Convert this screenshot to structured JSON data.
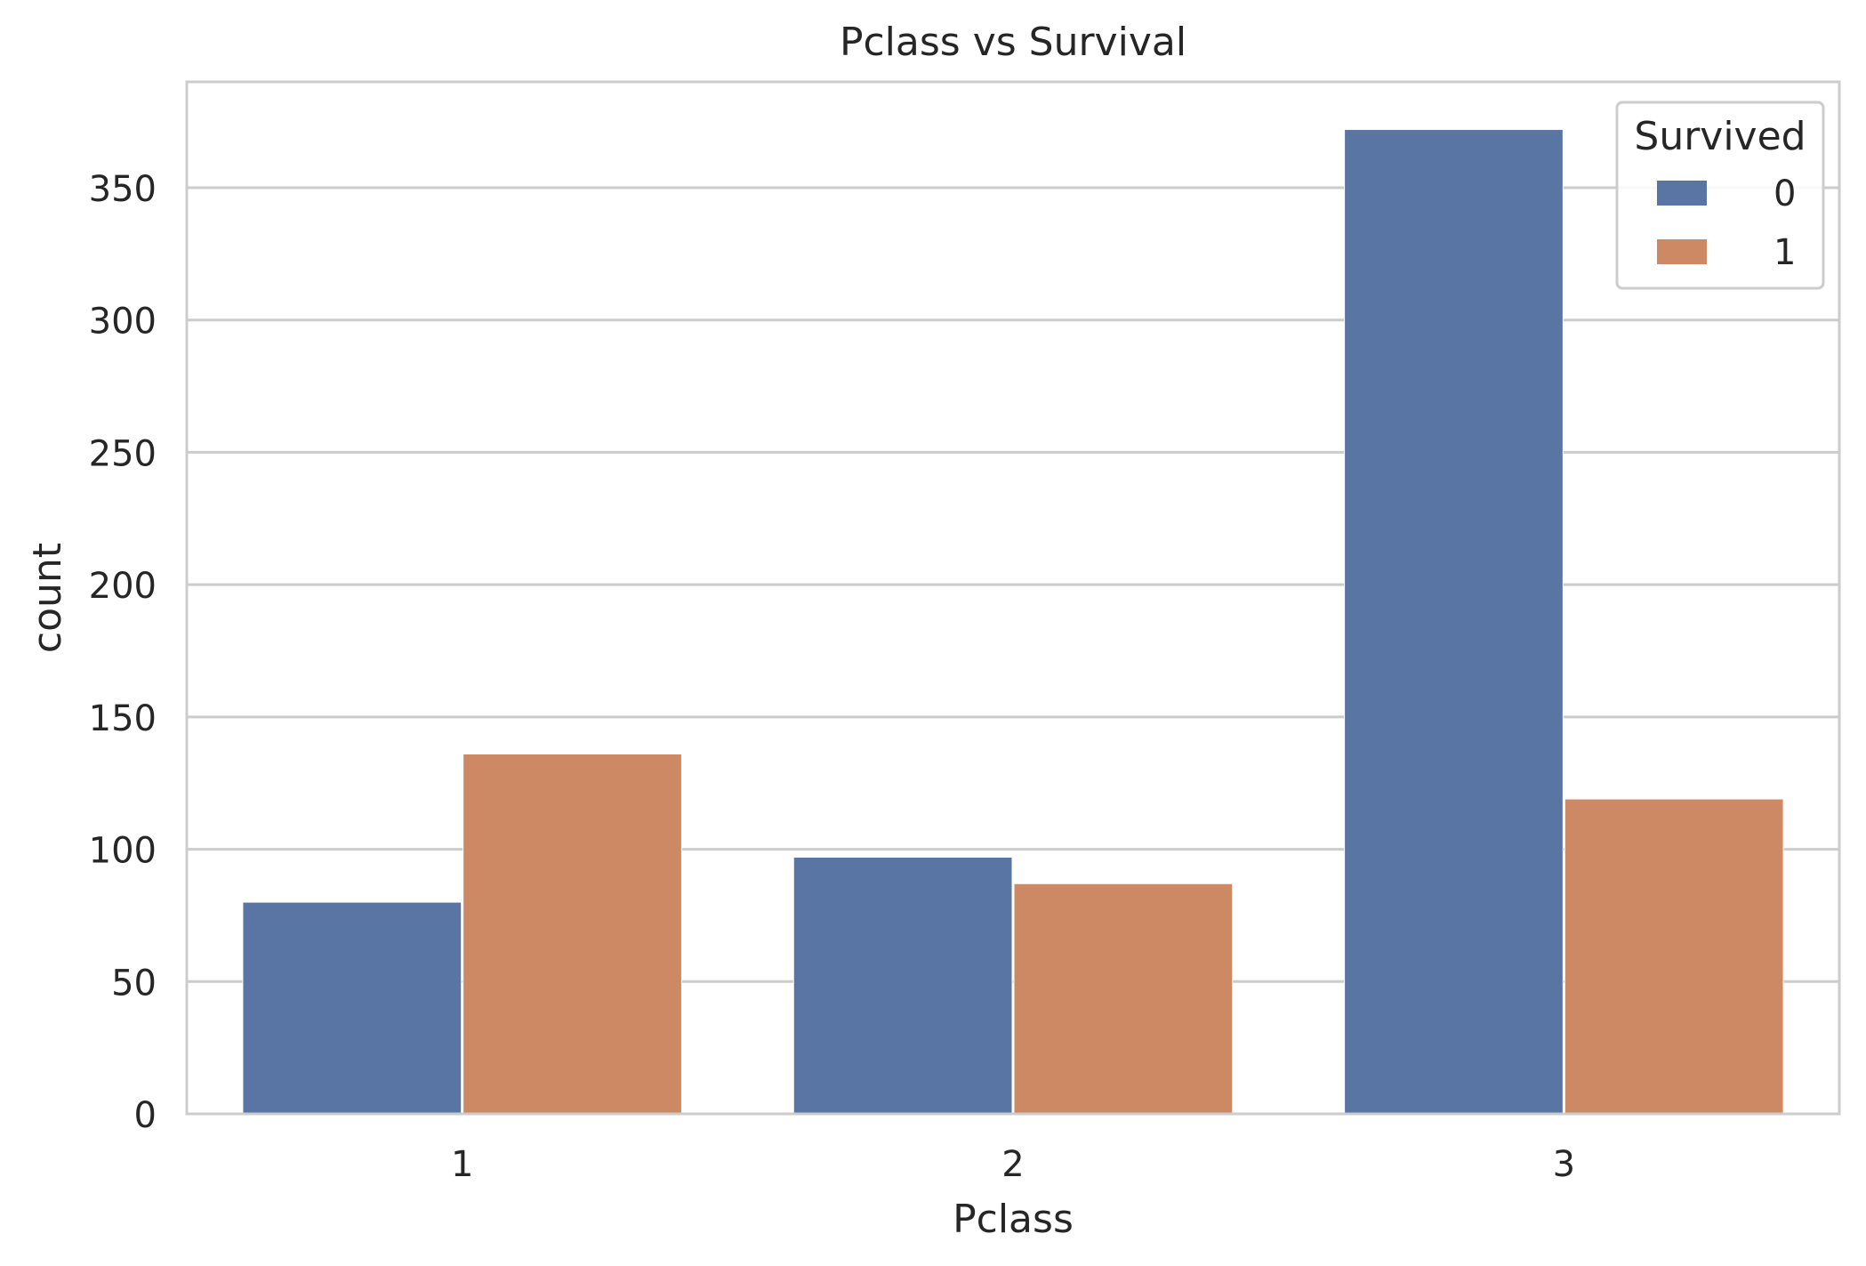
{
  "chart_data": {
    "type": "bar",
    "title": "Pclass vs Survival",
    "xlabel": "Pclass",
    "ylabel": "count",
    "categories": [
      "1",
      "2",
      "3"
    ],
    "series": [
      {
        "name": "0",
        "values": [
          80,
          97,
          372
        ],
        "color": "#5975a4"
      },
      {
        "name": "1",
        "values": [
          136,
          87,
          119
        ],
        "color": "#cc8963"
      }
    ],
    "ylim": [
      0,
      390
    ],
    "yticks": [
      0,
      50,
      100,
      150,
      200,
      250,
      300,
      350
    ],
    "grid": "horizontal",
    "legend": {
      "title": "Survived",
      "placement": "top-right"
    },
    "colors": {
      "grid": "#cccccc",
      "spine": "#cccccc",
      "text": "#262626",
      "background": "#ffffff"
    }
  }
}
